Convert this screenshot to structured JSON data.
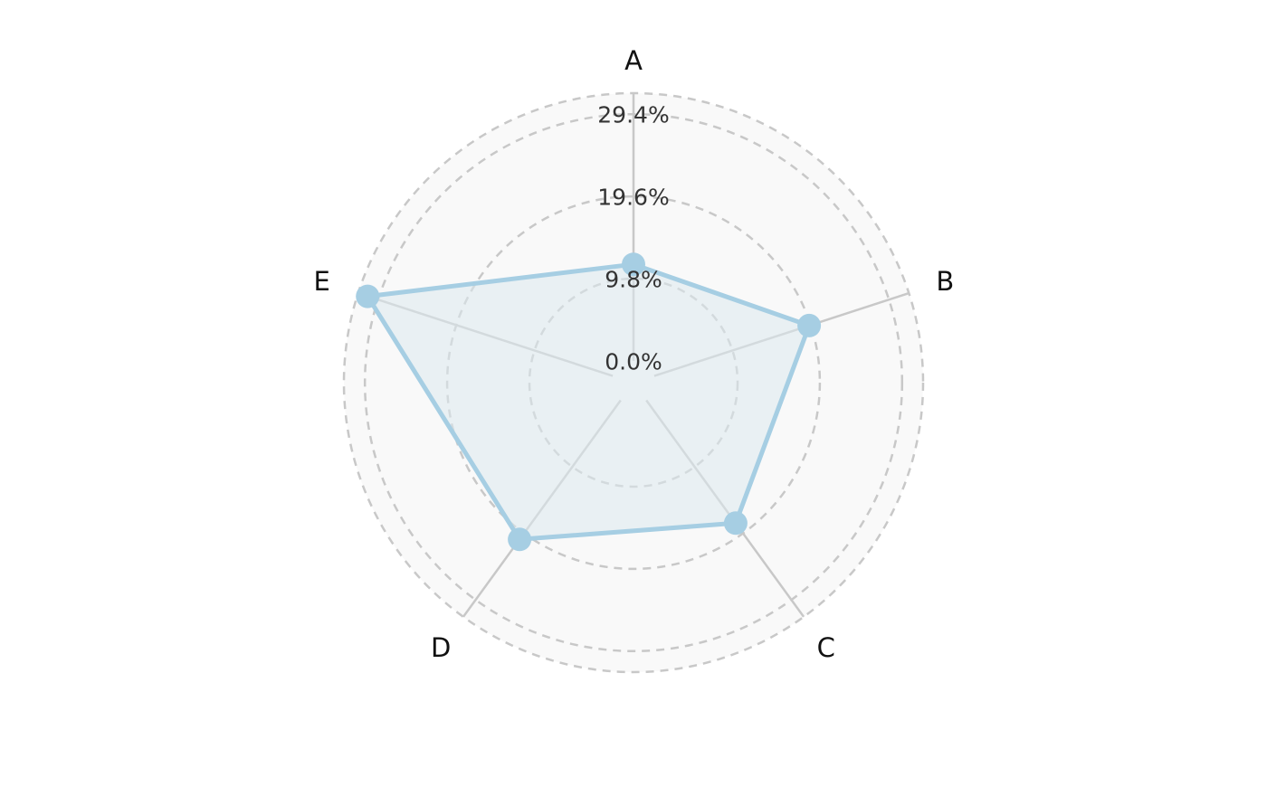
{
  "chart_data": {
    "type": "radar",
    "categories": [
      "A",
      "B",
      "C",
      "D",
      "E"
    ],
    "series": [
      {
        "values": [
          11.5,
          19.4,
          18.1,
          20.5,
          30.7
        ],
        "color": "#a6cee3"
      }
    ],
    "radial_ticks": [
      0,
      9.8,
      19.6,
      29.4
    ],
    "radial_tick_labels": [
      "0.0%",
      "9.8%",
      "19.6%",
      "29.4%"
    ],
    "rlim": [
      -2.6,
      31.9
    ],
    "grid": true,
    "grid_style": "dashed",
    "colors": {
      "series": "#a6cee3",
      "fill": "#dce9ef",
      "background": "#f9f9f9",
      "grid": "#c8c8c8",
      "spokes": "#c8c8c8"
    }
  }
}
